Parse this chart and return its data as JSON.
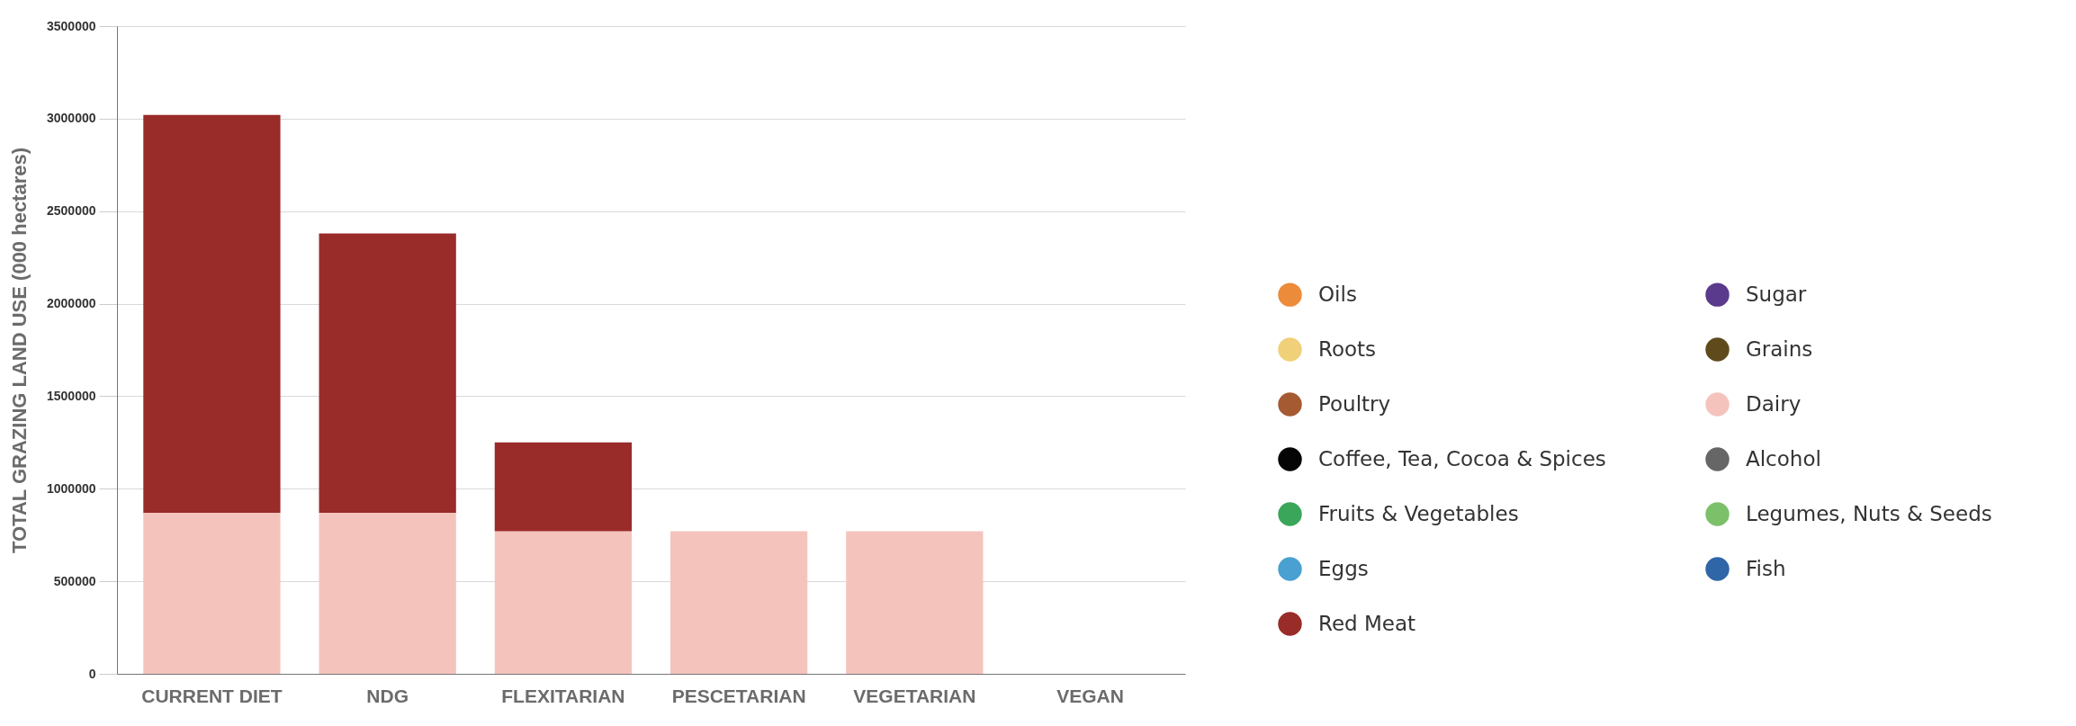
{
  "chart_data": {
    "type": "bar",
    "stacked": true,
    "ylabel": "TOTAL GRAZING LAND USE (000 hectares)",
    "categories": [
      "CURRENT DIET",
      "NDG",
      "FLEXITARIAN",
      "PESCETARIAN",
      "VEGETARIAN",
      "VEGAN"
    ],
    "ylim": [
      0,
      3500000
    ],
    "yticks": [
      0,
      500000,
      1000000,
      1500000,
      2000000,
      2500000,
      3000000,
      3500000
    ],
    "grid": "y",
    "legend": "right",
    "series": [
      {
        "name": "Oils",
        "color": "#ec8b3a",
        "values": [
          null,
          null,
          null,
          null,
          null,
          null
        ]
      },
      {
        "name": "Sugar",
        "color": "#5a3a8c",
        "values": [
          null,
          null,
          null,
          null,
          null,
          null
        ]
      },
      {
        "name": "Roots",
        "color": "#f0d078",
        "values": [
          null,
          null,
          null,
          null,
          null,
          null
        ]
      },
      {
        "name": "Grains",
        "color": "#5f4a1c",
        "values": [
          null,
          null,
          null,
          null,
          null,
          null
        ]
      },
      {
        "name": "Poultry",
        "color": "#a65a32",
        "values": [
          null,
          null,
          null,
          null,
          null,
          null
        ]
      },
      {
        "name": "Dairy",
        "color": "#f4c4bc",
        "values": [
          870000,
          870000,
          770000,
          770000,
          770000,
          0
        ]
      },
      {
        "name": "Coffee, Tea, Cocoa & Spices",
        "color": "#050505",
        "values": [
          null,
          null,
          null,
          null,
          null,
          null
        ]
      },
      {
        "name": "Alcohol",
        "color": "#666666",
        "values": [
          null,
          null,
          null,
          null,
          null,
          null
        ]
      },
      {
        "name": "Fruits & Vegetables",
        "color": "#3aa65a",
        "values": [
          null,
          null,
          null,
          null,
          null,
          null
        ]
      },
      {
        "name": "Legumes, Nuts & Seeds",
        "color": "#7cc06a",
        "values": [
          null,
          null,
          null,
          null,
          null,
          null
        ]
      },
      {
        "name": "Eggs",
        "color": "#4aa0d0",
        "values": [
          null,
          null,
          null,
          null,
          null,
          null
        ]
      },
      {
        "name": "Fish",
        "color": "#2f66a8",
        "values": [
          null,
          null,
          null,
          null,
          null,
          null
        ]
      },
      {
        "name": "Red Meat",
        "color": "#992b29",
        "values": [
          2150000,
          1510000,
          480000,
          0,
          0,
          0
        ]
      }
    ]
  }
}
